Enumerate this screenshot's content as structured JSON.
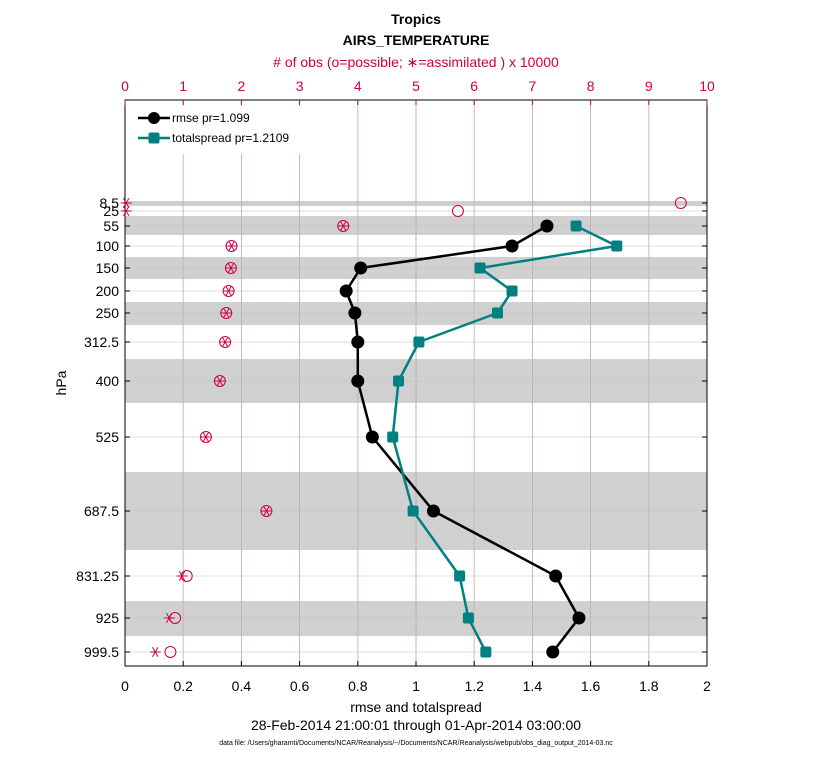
{
  "chart_data": {
    "type": "line",
    "title": "Tropics",
    "subtitle": "AIRS_TEMPERATURE",
    "xlabel": "rmse and totalspread",
    "ylabel": "hPa",
    "top_xlabel": "# of obs (o=possible; ∗=assimilated ) x 10000",
    "date_range": "28-Feb-2014 21:00:01 through 01-Apr-2014 03:00:00",
    "footnote": "data file: /Users/gharamti/Documents/NCAR/Reanalysis/~/Documents/NCAR/Reanalysis/webpub/obs_diag_output_2014-03.nc",
    "xlim": [
      0,
      2
    ],
    "x_ticks": [
      "0",
      "0.2",
      "0.4",
      "0.6",
      "0.8",
      "1",
      "1.2",
      "1.4",
      "1.6",
      "1.8",
      "2"
    ],
    "top_xlim": [
      0,
      10
    ],
    "top_ticks": [
      "0",
      "1",
      "2",
      "3",
      "4",
      "5",
      "6",
      "7",
      "8",
      "9",
      "10"
    ],
    "levels": [
      "8.5",
      "25",
      "55",
      "100",
      "150",
      "200",
      "250",
      "312.5",
      "400",
      "525",
      "687.5",
      "831.25",
      "925",
      "999.5"
    ],
    "series": [
      {
        "name": "rmse pr=1.099",
        "color": "#000000",
        "marker": "circle",
        "levels": [
          "55",
          "100",
          "150",
          "200",
          "250",
          "312.5",
          "400",
          "525",
          "687.5",
          "831.25",
          "925",
          "999.5"
        ],
        "values": [
          1.45,
          1.33,
          0.81,
          0.76,
          0.79,
          0.8,
          0.8,
          0.85,
          1.06,
          1.48,
          1.56,
          1.47
        ]
      },
      {
        "name": "totalspread pr=1.2109",
        "color": "#008080",
        "marker": "square",
        "levels": [
          "55",
          "100",
          "150",
          "200",
          "250",
          "312.5",
          "400",
          "525",
          "687.5",
          "831.25",
          "925",
          "999.5"
        ],
        "values": [
          1.55,
          1.69,
          1.22,
          1.33,
          1.28,
          1.01,
          0.94,
          0.92,
          0.99,
          1.15,
          1.18,
          1.24
        ]
      }
    ],
    "obs_possible": {
      "color": "#cc0044",
      "levels": [
        "8.5",
        "25",
        "55",
        "100",
        "150",
        "200",
        "250",
        "312.5",
        "400",
        "525",
        "687.5",
        "831.25",
        "925",
        "999.5"
      ],
      "values": [
        9.55,
        5.72,
        3.75,
        1.83,
        1.82,
        1.78,
        1.74,
        1.72,
        1.63,
        1.39,
        2.43,
        1.06,
        0.86,
        0.78
      ]
    },
    "obs_assimilated": {
      "color": "#cc0044",
      "levels": [
        "8.5",
        "25",
        "55",
        "100",
        "150",
        "200",
        "250",
        "312.5",
        "400",
        "525",
        "687.5",
        "831.25",
        "925",
        "999.5"
      ],
      "values": [
        0.02,
        0.02,
        3.75,
        1.83,
        1.82,
        1.78,
        1.74,
        1.72,
        1.63,
        1.39,
        2.43,
        0.98,
        0.76,
        0.52
      ]
    },
    "legend_position": "top-left"
  }
}
